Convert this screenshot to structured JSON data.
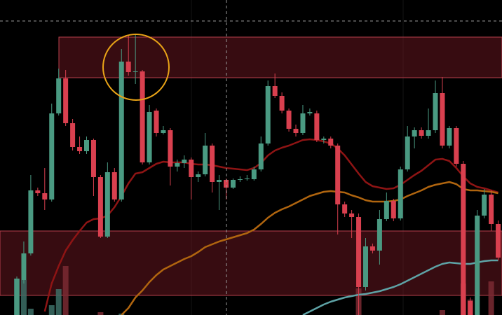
{
  "chart_data": {
    "type": "candlestick",
    "ylim": [
      0,
      450
    ],
    "up_color": "#4a9a82",
    "down_color": "#d9404f",
    "open": [
      0,
      50,
      88,
      178,
      174,
      165,
      288,
      338,
      274,
      240,
      234,
      250,
      197,
      112,
      204,
      165,
      362,
      347,
      348,
      218,
      292,
      260,
      264,
      212,
      217,
      222,
      197,
      201,
      242,
      190,
      193,
      182,
      193,
      194,
      194,
      208,
      245,
      327,
      313,
      292,
      266,
      260,
      288,
      288,
      250,
      252,
      242,
      158,
      145,
      140,
      40,
      98,
      92,
      137,
      163,
      138,
      208,
      255,
      264,
      256,
      264,
      317,
      242,
      267,
      216,
      20,
      0,
      142,
      172,
      130
    ],
    "close": [
      52,
      88,
      178,
      174,
      165,
      288,
      338,
      274,
      240,
      234,
      250,
      197,
      112,
      204,
      165,
      362,
      347,
      348,
      218,
      290,
      260,
      264,
      212,
      217,
      222,
      197,
      201,
      242,
      190,
      193,
      182,
      193,
      194,
      195,
      208,
      245,
      327,
      313,
      292,
      266,
      260,
      288,
      290,
      250,
      252,
      242,
      158,
      145,
      140,
      40,
      98,
      92,
      137,
      163,
      138,
      208,
      255,
      264,
      256,
      264,
      317,
      242,
      267,
      216,
      0,
      0,
      142,
      172,
      130,
      82
    ],
    "high": [
      55,
      105,
      200,
      182,
      210,
      302,
      352,
      350,
      280,
      255,
      255,
      252,
      200,
      218,
      210,
      380,
      400,
      400,
      350,
      300,
      295,
      270,
      267,
      222,
      228,
      225,
      205,
      260,
      245,
      200,
      195,
      195,
      198,
      200,
      212,
      255,
      335,
      345,
      318,
      295,
      272,
      300,
      295,
      292,
      255,
      255,
      245,
      162,
      150,
      145,
      110,
      102,
      150,
      175,
      166,
      212,
      270,
      268,
      268,
      295,
      335,
      340,
      270,
      270,
      220,
      25,
      150,
      180,
      178,
      135
    ],
    "low": [
      0,
      45,
      85,
      170,
      150,
      162,
      285,
      270,
      235,
      230,
      230,
      170,
      110,
      110,
      162,
      162,
      342,
      330,
      215,
      215,
      255,
      258,
      185,
      205,
      210,
      165,
      190,
      198,
      175,
      150,
      165,
      180,
      190,
      192,
      192,
      205,
      242,
      310,
      288,
      262,
      255,
      257,
      285,
      247,
      245,
      238,
      115,
      140,
      110,
      0,
      35,
      88,
      72,
      134,
      134,
      135,
      205,
      238,
      252,
      252,
      260,
      238,
      238,
      212,
      0,
      0,
      0,
      138,
      120,
      78
    ],
    "moving_averages": [
      {
        "color": "#8e1414",
        "values": [
          null,
          null,
          null,
          null,
          5,
          45,
          70,
          92,
          107,
          120,
          132,
          137,
          138,
          142,
          154,
          170,
          188,
          202,
          204,
          210,
          216,
          219,
          218,
          218,
          218,
          216,
          215,
          215,
          214,
          212,
          210,
          209,
          208,
          207,
          210,
          217,
          228,
          235,
          239,
          242,
          246,
          250,
          251,
          250,
          248,
          245,
          238,
          228,
          215,
          202,
          190,
          184,
          182,
          180,
          181,
          186,
          193,
          200,
          206,
          214,
          222,
          223,
          220,
          210,
          198,
          188,
          183,
          181,
          178,
          175
        ]
      },
      {
        "color": "#b0650f",
        "values": [
          null,
          null,
          null,
          null,
          null,
          null,
          null,
          null,
          null,
          null,
          null,
          null,
          null,
          null,
          null,
          0,
          10,
          25,
          35,
          47,
          57,
          65,
          70,
          75,
          80,
          84,
          90,
          97,
          101,
          105,
          108,
          111,
          114,
          117,
          122,
          130,
          139,
          146,
          151,
          155,
          160,
          165,
          170,
          173,
          176,
          177,
          176,
          175,
          171,
          168,
          164,
          162,
          162,
          162,
          163,
          165,
          170,
          174,
          178,
          183,
          186,
          188,
          190,
          187,
          180,
          178,
          178,
          177,
          176,
          174
        ]
      },
      {
        "color": "#5ea3a6",
        "values": [
          null,
          null,
          null,
          null,
          null,
          null,
          null,
          null,
          null,
          null,
          null,
          null,
          null,
          null,
          null,
          null,
          null,
          null,
          null,
          null,
          null,
          null,
          null,
          null,
          null,
          null,
          null,
          null,
          null,
          null,
          null,
          null,
          null,
          null,
          null,
          null,
          null,
          null,
          null,
          null,
          null,
          0,
          5,
          10,
          15,
          19,
          22,
          25,
          27,
          29,
          30,
          32,
          34,
          37,
          40,
          44,
          49,
          54,
          59,
          64,
          69,
          73,
          75,
          74,
          73,
          73,
          75,
          77,
          78,
          78
        ]
      }
    ],
    "volume": {
      "up_color": "#3c6f66",
      "down_color": "#7a2a32",
      "values": [
        52,
        50,
        9,
        null,
        null,
        14,
        37,
        70,
        null,
        null,
        null,
        null,
        4,
        null,
        null,
        2,
        null,
        null,
        null,
        null,
        null,
        null,
        null,
        null,
        null,
        null,
        null,
        null,
        null,
        null,
        null,
        null,
        null,
        null,
        null,
        null,
        null,
        null,
        null,
        null,
        null,
        null,
        null,
        null,
        null,
        null,
        null,
        null,
        null,
        38,
        null,
        null,
        null,
        null,
        null,
        null,
        null,
        null,
        null,
        null,
        null,
        7,
        null,
        null,
        45,
        22,
        null,
        null,
        48,
        null
      ]
    },
    "zones": [
      [
        339,
        397
      ],
      [
        28,
        120
      ]
    ]
  }
}
